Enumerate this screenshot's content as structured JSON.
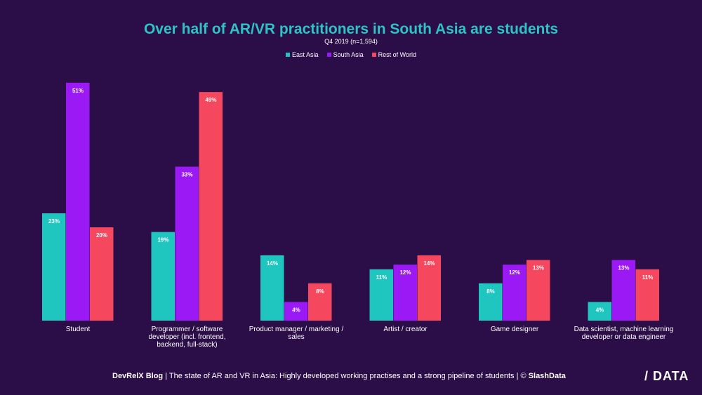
{
  "colors": {
    "background": "#2b0d47",
    "title": "#2ec4c4",
    "east_asia": "#1fc5bf",
    "south_asia": "#9b19f5",
    "rest_of_world": "#f5475e"
  },
  "footer": {
    "blog": "DevRelX Blog",
    "text": " | The state of AR and VR in Asia: Highly developed working practises and a strong pipeline of students | © ",
    "brand": "SlashData"
  },
  "logo": "/ DATA",
  "chart_data": {
    "type": "bar",
    "title": "Over half of AR/VR practitioners in South Asia are students",
    "subtitle": "Q4 2019 (n=1,594)",
    "legend_position": "top-center",
    "grid": false,
    "ylim": [
      0,
      55
    ],
    "categories": [
      [
        "Student"
      ],
      [
        "Programmer / software",
        "developer (incl. frontend,",
        "backend, full-stack)"
      ],
      [
        "Product manager / marketing /",
        "sales"
      ],
      [
        "Artist / creator"
      ],
      [
        "Game designer"
      ],
      [
        "Data scientist, machine learning",
        "developer or data engineer"
      ]
    ],
    "series": [
      {
        "name": "East Asia",
        "color": "#1fc5bf",
        "values": [
          23,
          19,
          14,
          11,
          8,
          4
        ],
        "labels": [
          "23%",
          "19%",
          "14%",
          "11%",
          "8%",
          "4%"
        ]
      },
      {
        "name": "South Asia",
        "color": "#9b19f5",
        "values": [
          51,
          33,
          4,
          12,
          12,
          13
        ],
        "labels": [
          "51%",
          "33%",
          "4%",
          "12%",
          "12%",
          "13%"
        ]
      },
      {
        "name": "Rest of World",
        "color": "#f5475e",
        "values": [
          20,
          49,
          8,
          14,
          13,
          11
        ],
        "labels": [
          "20%",
          "49%",
          "8%",
          "14%",
          "13%",
          "11%"
        ]
      }
    ]
  }
}
